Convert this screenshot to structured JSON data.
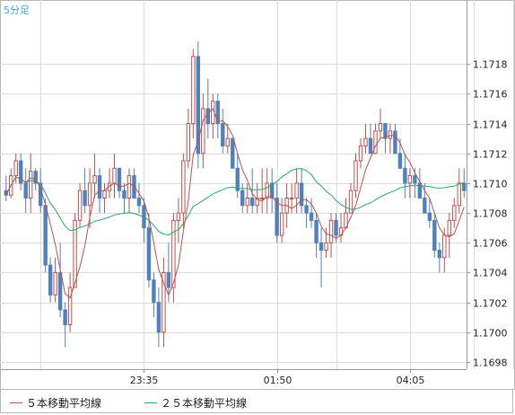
{
  "timeframe_label": "5分足",
  "colors": {
    "up": "#c0504d",
    "down": "#4f81bd",
    "ma5": "#c0504d",
    "ma25": "#27a86b",
    "grid": "#dcdcdc",
    "axis_text": "#222222",
    "timeframe_text": "#3ba6d9"
  },
  "legend": [
    {
      "label": "５本移動平均線",
      "color": "#c0504d"
    },
    {
      "label": "２５本移動平均線",
      "color": "#27a86b"
    }
  ],
  "chart_data": {
    "type": "candlestick",
    "title": "",
    "ylim": [
      1.1698,
      1.172
    ],
    "y_ticks": [
      1.1698,
      1.17,
      1.1702,
      1.1704,
      1.1706,
      1.1708,
      1.171,
      1.1712,
      1.1714,
      1.1716,
      1.1718
    ],
    "y_tick_labels": [
      "1.1698",
      "1.1700",
      "1.1702",
      "1.1704",
      "1.1706",
      "1.1708",
      "1.1710",
      "1.1712",
      "1.1714",
      "1.1716",
      "1.1718"
    ],
    "x_tick_labels": [
      {
        "label": "23:35",
        "index": 28
      },
      {
        "label": "01:50",
        "index": 55
      },
      {
        "label": "04:05",
        "index": 82
      }
    ],
    "grid": true,
    "candles": [
      [
        1.17095,
        1.17105,
        1.17088,
        1.17092
      ],
      [
        1.17092,
        1.1711,
        1.1709,
        1.17105
      ],
      [
        1.17105,
        1.1712,
        1.171,
        1.17115
      ],
      [
        1.17115,
        1.1712,
        1.17095,
        1.171
      ],
      [
        1.171,
        1.1711,
        1.1708,
        1.1709
      ],
      [
        1.1709,
        1.1712,
        1.1708,
        1.17108
      ],
      [
        1.17108,
        1.1711,
        1.17095,
        1.171
      ],
      [
        1.171,
        1.1711,
        1.1708,
        1.17085
      ],
      [
        1.17085,
        1.1709,
        1.1704,
        1.17045
      ],
      [
        1.17045,
        1.1705,
        1.1702,
        1.17025
      ],
      [
        1.17025,
        1.1705,
        1.1702,
        1.1704
      ],
      [
        1.1704,
        1.1706,
        1.1701,
        1.17015
      ],
      [
        1.17015,
        1.1702,
        1.1699,
        1.17005
      ],
      [
        1.17005,
        1.1704,
        1.17,
        1.1703
      ],
      [
        1.1703,
        1.1708,
        1.1703,
        1.17075
      ],
      [
        1.17075,
        1.171,
        1.1707,
        1.17095
      ],
      [
        1.17095,
        1.1711,
        1.1708,
        1.17085
      ],
      [
        1.17085,
        1.1711,
        1.1707,
        1.171
      ],
      [
        1.171,
        1.1712,
        1.1709,
        1.17105
      ],
      [
        1.17105,
        1.1711,
        1.1708,
        1.1709
      ],
      [
        1.1709,
        1.171,
        1.1708,
        1.17095
      ],
      [
        1.17095,
        1.1711,
        1.1709,
        1.171
      ],
      [
        1.171,
        1.1712,
        1.1709,
        1.1711
      ],
      [
        1.1711,
        1.1711,
        1.1709,
        1.17095
      ],
      [
        1.17095,
        1.171,
        1.1708,
        1.1709
      ],
      [
        1.1709,
        1.1711,
        1.1708,
        1.17105
      ],
      [
        1.17105,
        1.1711,
        1.1709,
        1.1709
      ],
      [
        1.1709,
        1.171,
        1.1708,
        1.17085
      ],
      [
        1.17085,
        1.1709,
        1.1706,
        1.1707
      ],
      [
        1.1707,
        1.1708,
        1.1703,
        1.17035
      ],
      [
        1.17035,
        1.1704,
        1.1701,
        1.1702
      ],
      [
        1.1702,
        1.1703,
        1.1699,
        1.17
      ],
      [
        1.17,
        1.1705,
        1.1699,
        1.1704
      ],
      [
        1.1704,
        1.1706,
        1.1702,
        1.1703
      ],
      [
        1.1703,
        1.1708,
        1.1702,
        1.17075
      ],
      [
        1.17075,
        1.1709,
        1.1706,
        1.1708
      ],
      [
        1.1708,
        1.1712,
        1.1707,
        1.17115
      ],
      [
        1.17115,
        1.1715,
        1.1711,
        1.1714
      ],
      [
        1.1714,
        1.1719,
        1.1713,
        1.17185
      ],
      [
        1.17185,
        1.17195,
        1.1711,
        1.1712
      ],
      [
        1.1712,
        1.1716,
        1.1711,
        1.1715
      ],
      [
        1.1715,
        1.1717,
        1.1713,
        1.1714
      ],
      [
        1.1714,
        1.1716,
        1.1713,
        1.17155
      ],
      [
        1.17155,
        1.1716,
        1.1713,
        1.1714
      ],
      [
        1.1714,
        1.1715,
        1.1712,
        1.17125
      ],
      [
        1.17125,
        1.1714,
        1.1712,
        1.1713
      ],
      [
        1.1713,
        1.1713,
        1.1711,
        1.1711
      ],
      [
        1.1711,
        1.1712,
        1.1709,
        1.17095
      ],
      [
        1.17095,
        1.171,
        1.1708,
        1.17085
      ],
      [
        1.17085,
        1.171,
        1.1708,
        1.1709
      ],
      [
        1.1709,
        1.1711,
        1.1708,
        1.17085
      ],
      [
        1.17085,
        1.171,
        1.1708,
        1.1709
      ],
      [
        1.1709,
        1.1711,
        1.1708,
        1.1709
      ],
      [
        1.1709,
        1.1711,
        1.1708,
        1.171
      ],
      [
        1.171,
        1.1711,
        1.1708,
        1.1709
      ],
      [
        1.1709,
        1.171,
        1.1706,
        1.17065
      ],
      [
        1.17065,
        1.1709,
        1.1706,
        1.1708
      ],
      [
        1.1708,
        1.171,
        1.1707,
        1.1709
      ],
      [
        1.1709,
        1.171,
        1.1708,
        1.1709
      ],
      [
        1.1709,
        1.1711,
        1.1708,
        1.171
      ],
      [
        1.171,
        1.1711,
        1.1708,
        1.17085
      ],
      [
        1.17085,
        1.1709,
        1.1707,
        1.1708
      ],
      [
        1.1708,
        1.1709,
        1.1707,
        1.17075
      ],
      [
        1.17075,
        1.1708,
        1.1705,
        1.1706
      ],
      [
        1.1706,
        1.1707,
        1.1703,
        1.17055
      ],
      [
        1.17055,
        1.1707,
        1.1705,
        1.1706
      ],
      [
        1.1706,
        1.1708,
        1.1705,
        1.17075
      ],
      [
        1.17075,
        1.1708,
        1.1706,
        1.17065
      ],
      [
        1.17065,
        1.1708,
        1.1706,
        1.1707
      ],
      [
        1.1707,
        1.1709,
        1.1707,
        1.1708
      ],
      [
        1.1708,
        1.171,
        1.1708,
        1.17095
      ],
      [
        1.17095,
        1.1712,
        1.1709,
        1.17115
      ],
      [
        1.17115,
        1.1713,
        1.1711,
        1.17125
      ],
      [
        1.17125,
        1.1714,
        1.1712,
        1.1713
      ],
      [
        1.1713,
        1.1714,
        1.1712,
        1.1712
      ],
      [
        1.1712,
        1.1714,
        1.1712,
        1.17135
      ],
      [
        1.17135,
        1.1715,
        1.1713,
        1.1714
      ],
      [
        1.1714,
        1.1714,
        1.1712,
        1.1713
      ],
      [
        1.1713,
        1.1714,
        1.1712,
        1.17135
      ],
      [
        1.17135,
        1.1714,
        1.1712,
        1.1712
      ],
      [
        1.1712,
        1.1713,
        1.1711,
        1.1711
      ],
      [
        1.1711,
        1.1712,
        1.1709,
        1.171
      ],
      [
        1.171,
        1.1711,
        1.1709,
        1.17105
      ],
      [
        1.17105,
        1.1711,
        1.1709,
        1.171
      ],
      [
        1.171,
        1.1711,
        1.1709,
        1.1709
      ],
      [
        1.1709,
        1.171,
        1.1708,
        1.1708
      ],
      [
        1.1708,
        1.1709,
        1.1707,
        1.17075
      ],
      [
        1.17075,
        1.1708,
        1.1705,
        1.17055
      ],
      [
        1.17055,
        1.1706,
        1.1704,
        1.1705
      ],
      [
        1.1705,
        1.1707,
        1.1704,
        1.17065
      ],
      [
        1.17065,
        1.1708,
        1.1705,
        1.17075
      ],
      [
        1.17075,
        1.1709,
        1.1707,
        1.17085
      ],
      [
        1.17085,
        1.1711,
        1.1708,
        1.171
      ],
      [
        1.171,
        1.1711,
        1.1709,
        1.17095
      ]
    ]
  }
}
